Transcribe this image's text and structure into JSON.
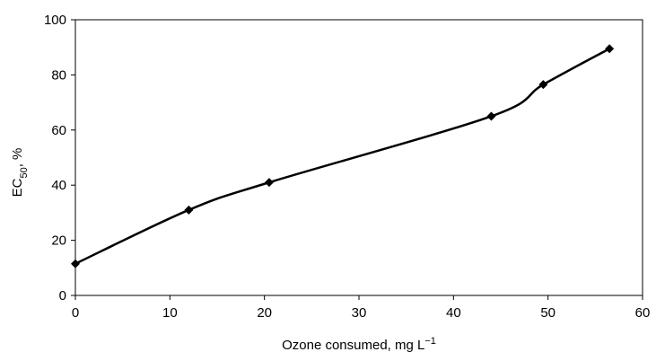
{
  "chart_data": {
    "type": "line",
    "xlabel": "Ozone consumed, mg L",
    "xlabel_sup": "−1",
    "ylabel": "EC",
    "ylabel_sub": "50",
    "ylabel_suffix": ", %",
    "xlim": [
      0,
      60
    ],
    "ylim": [
      0,
      100
    ],
    "xticks": [
      0,
      10,
      20,
      30,
      40,
      50,
      60
    ],
    "yticks": [
      0,
      20,
      40,
      60,
      80,
      100
    ],
    "grid": false,
    "legend": "none",
    "marker": "diamond",
    "line_color": "#000000",
    "series": [
      {
        "x": [
          0,
          12,
          20.5,
          44,
          49.5,
          56.5
        ],
        "y": [
          11.5,
          31,
          41,
          65,
          76.5,
          89.5
        ]
      }
    ]
  }
}
